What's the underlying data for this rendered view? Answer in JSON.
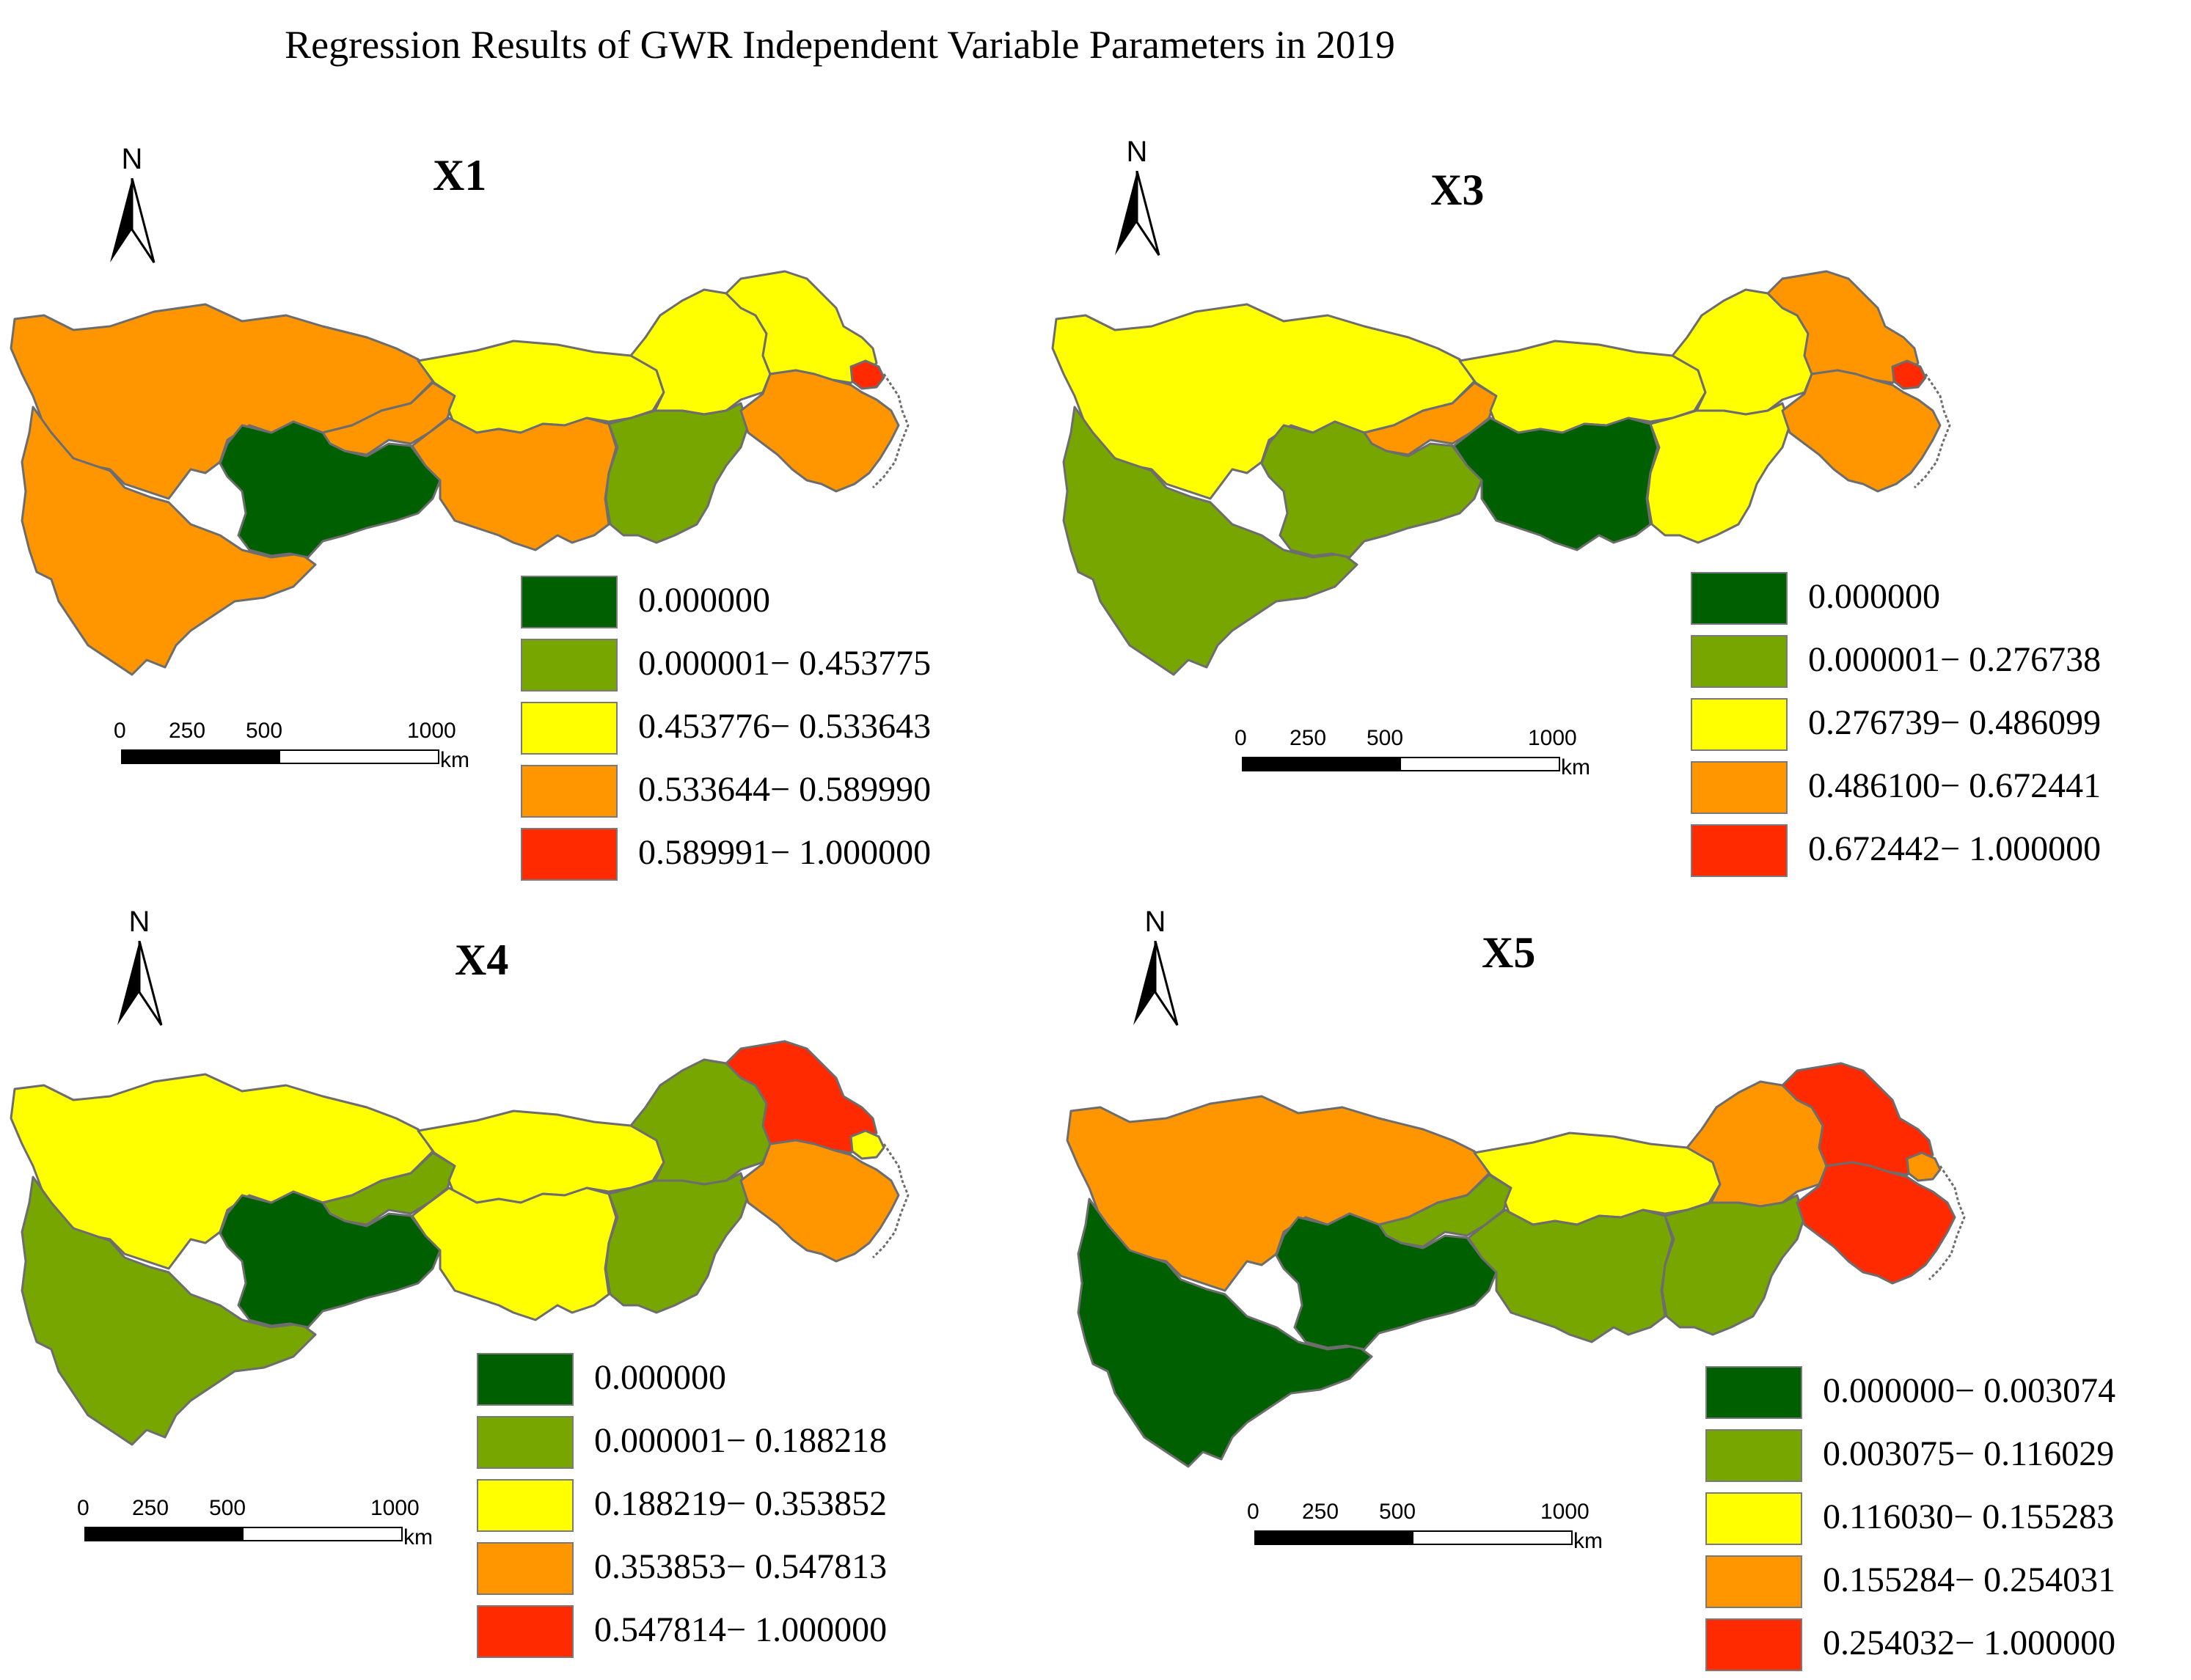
{
  "title": "Regression Results of GWR Independent Variable Parameters in 2019",
  "colors": {
    "class1": "#005f00",
    "class2": "#78a600",
    "class3": "#ffff00",
    "class4": "#ff9600",
    "class5": "#ff2a00"
  },
  "north_label": "N",
  "scale": {
    "ticks": [
      "0",
      "250",
      "500",
      "1000"
    ],
    "unit": "km"
  },
  "panels": [
    {
      "title": "X1",
      "legend": [
        "0.000000",
        "0.000001− 0.453775",
        "0.453776− 0.533643",
        "0.533644− 0.589990",
        "0.589991− 1.000000"
      ]
    },
    {
      "title": "X3",
      "legend": [
        "0.000000",
        "0.000001− 0.276738",
        "0.276739− 0.486099",
        "0.486100− 0.672441",
        "0.672442− 1.000000"
      ]
    },
    {
      "title": "X4",
      "legend": [
        "0.000000",
        "0.000001− 0.188218",
        "0.188219− 0.353852",
        "0.353853− 0.547813",
        "0.547814− 1.000000"
      ]
    },
    {
      "title": "X5",
      "legend": [
        "0.000000− 0.003074",
        "0.003075− 0.116029",
        "0.116030− 0.155283",
        "0.155284− 0.254031",
        "0.254032− 1.000000"
      ]
    }
  ],
  "map_classes": {
    "X1": {
      "sichuan": 4,
      "yunnan": 4,
      "chongqing": 4,
      "guizhou": 1,
      "hubei": 3,
      "hunan": 4,
      "anhui": 3,
      "jiangxi": 2,
      "jiangsu": 3,
      "zhejiang": 4,
      "shanghai": 5
    },
    "X3": {
      "sichuan": 3,
      "yunnan": 2,
      "chongqing": 4,
      "guizhou": 2,
      "hubei": 3,
      "hunan": 1,
      "anhui": 3,
      "jiangxi": 3,
      "jiangsu": 4,
      "zhejiang": 4,
      "shanghai": 5
    },
    "X4": {
      "sichuan": 3,
      "yunnan": 2,
      "chongqing": 2,
      "guizhou": 1,
      "hubei": 3,
      "hunan": 3,
      "anhui": 2,
      "jiangxi": 2,
      "jiangsu": 5,
      "zhejiang": 4,
      "shanghai": 3
    },
    "X5": {
      "sichuan": 4,
      "yunnan": 1,
      "chongqing": 2,
      "guizhou": 1,
      "hubei": 3,
      "hunan": 2,
      "anhui": 4,
      "jiangxi": 2,
      "jiangsu": 5,
      "zhejiang": 5,
      "shanghai": 4
    }
  }
}
